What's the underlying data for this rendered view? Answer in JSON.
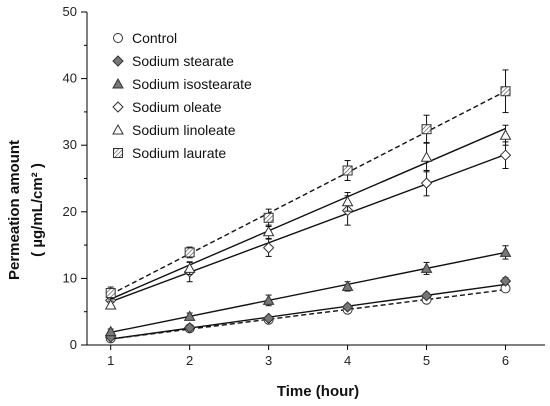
{
  "chart_data": {
    "type": "line",
    "xlabel": "Time (hour)",
    "ylabel_line1": "Permeation amount",
    "ylabel_line2": "( µg/mL/cm² )",
    "xlim": [
      0.7,
      6.5
    ],
    "ylim": [
      0,
      50
    ],
    "xticks": [
      1,
      2,
      3,
      4,
      5,
      6
    ],
    "yticks": [
      0,
      10,
      20,
      30,
      40,
      50
    ],
    "legend_position": "top-left",
    "x": [
      1,
      2,
      3,
      4,
      5,
      6
    ],
    "series": [
      {
        "name": "Control",
        "marker": "circle",
        "line_style": "dashed",
        "values": [
          1.0,
          2.5,
          3.8,
          5.3,
          6.8,
          8.5
        ],
        "errors": [
          0.2,
          0.2,
          0.3,
          0.3,
          0.4,
          0.4
        ],
        "fit": [
          0.9,
          8.3
        ]
      },
      {
        "name": "Sodium stearate",
        "marker": "diamond-filled",
        "line_style": "solid",
        "values": [
          1.2,
          2.6,
          4.0,
          5.7,
          7.4,
          9.6
        ],
        "errors": [
          0.2,
          0.3,
          0.3,
          0.4,
          0.4,
          0.5
        ],
        "fit": [
          0.9,
          9.1
        ]
      },
      {
        "name": "Sodium isostearate",
        "marker": "triangle-filled",
        "line_style": "solid",
        "values": [
          2.0,
          4.3,
          6.7,
          8.8,
          11.5,
          13.9
        ],
        "errors": [
          0.4,
          0.5,
          0.8,
          0.7,
          0.9,
          1.0
        ],
        "fit": [
          1.9,
          13.9
        ]
      },
      {
        "name": "Sodium oleate",
        "marker": "diamond-open",
        "line_style": "solid",
        "values": [
          6.7,
          11.0,
          14.6,
          20.2,
          24.3,
          28.5
        ],
        "errors": [
          0.8,
          1.5,
          1.3,
          2.2,
          1.9,
          2.0
        ],
        "fit": [
          6.5,
          28.6
        ]
      },
      {
        "name": "Sodium linoleate",
        "marker": "triangle-open",
        "line_style": "solid",
        "values": [
          6.0,
          11.5,
          17.0,
          21.5,
          28.2,
          31.5
        ],
        "errors": [
          0.6,
          0.9,
          1.0,
          1.4,
          2.2,
          1.5
        ],
        "fit": [
          6.9,
          32.5
        ]
      },
      {
        "name": "Sodium laurate",
        "marker": "square-hatched",
        "line_style": "dashed",
        "values": [
          7.8,
          13.9,
          19.1,
          26.2,
          32.4,
          38.1
        ],
        "errors": [
          0.9,
          0.8,
          1.3,
          1.5,
          2.1,
          3.2
        ],
        "fit": [
          7.6,
          38.1
        ]
      }
    ]
  }
}
